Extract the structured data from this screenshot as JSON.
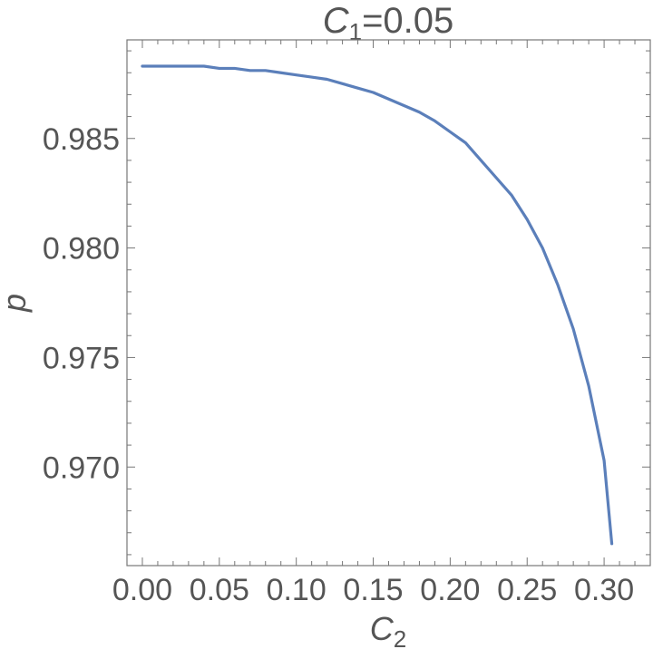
{
  "chart_data": {
    "type": "line",
    "title": {
      "main": "C",
      "sub": "1",
      "rest": "=0.05"
    },
    "xlabel": {
      "main": "C",
      "sub": "2"
    },
    "ylabel": "p",
    "xlim": [
      -0.01,
      0.33
    ],
    "ylim": [
      0.9655,
      0.9895
    ],
    "x_ticks": [
      0.0,
      0.05,
      0.1,
      0.15,
      0.2,
      0.25,
      0.3
    ],
    "x_tick_labels": [
      "0.00",
      "0.05",
      "0.10",
      "0.15",
      "0.20",
      "0.25",
      "0.30"
    ],
    "y_ticks": [
      0.97,
      0.975,
      0.98,
      0.985
    ],
    "y_tick_labels": [
      "0.970",
      "0.975",
      "0.980",
      "0.985"
    ],
    "grid": false,
    "series": [
      {
        "color": "#5b7fba",
        "x": [
          0.0,
          0.01,
          0.02,
          0.03,
          0.04,
          0.05,
          0.06,
          0.07,
          0.08,
          0.09,
          0.1,
          0.11,
          0.12,
          0.13,
          0.14,
          0.15,
          0.16,
          0.17,
          0.18,
          0.19,
          0.2,
          0.21,
          0.22,
          0.23,
          0.24,
          0.25,
          0.26,
          0.27,
          0.28,
          0.29,
          0.3,
          0.305
        ],
        "y": [
          0.9883,
          0.9883,
          0.9883,
          0.9883,
          0.9883,
          0.9882,
          0.9882,
          0.9881,
          0.9881,
          0.988,
          0.9879,
          0.9878,
          0.9877,
          0.9875,
          0.9873,
          0.9871,
          0.9868,
          0.9865,
          0.9862,
          0.9858,
          0.9853,
          0.9848,
          0.984,
          0.9832,
          0.9824,
          0.9813,
          0.98,
          0.9783,
          0.9763,
          0.9737,
          0.9703,
          0.9665
        ]
      }
    ]
  }
}
